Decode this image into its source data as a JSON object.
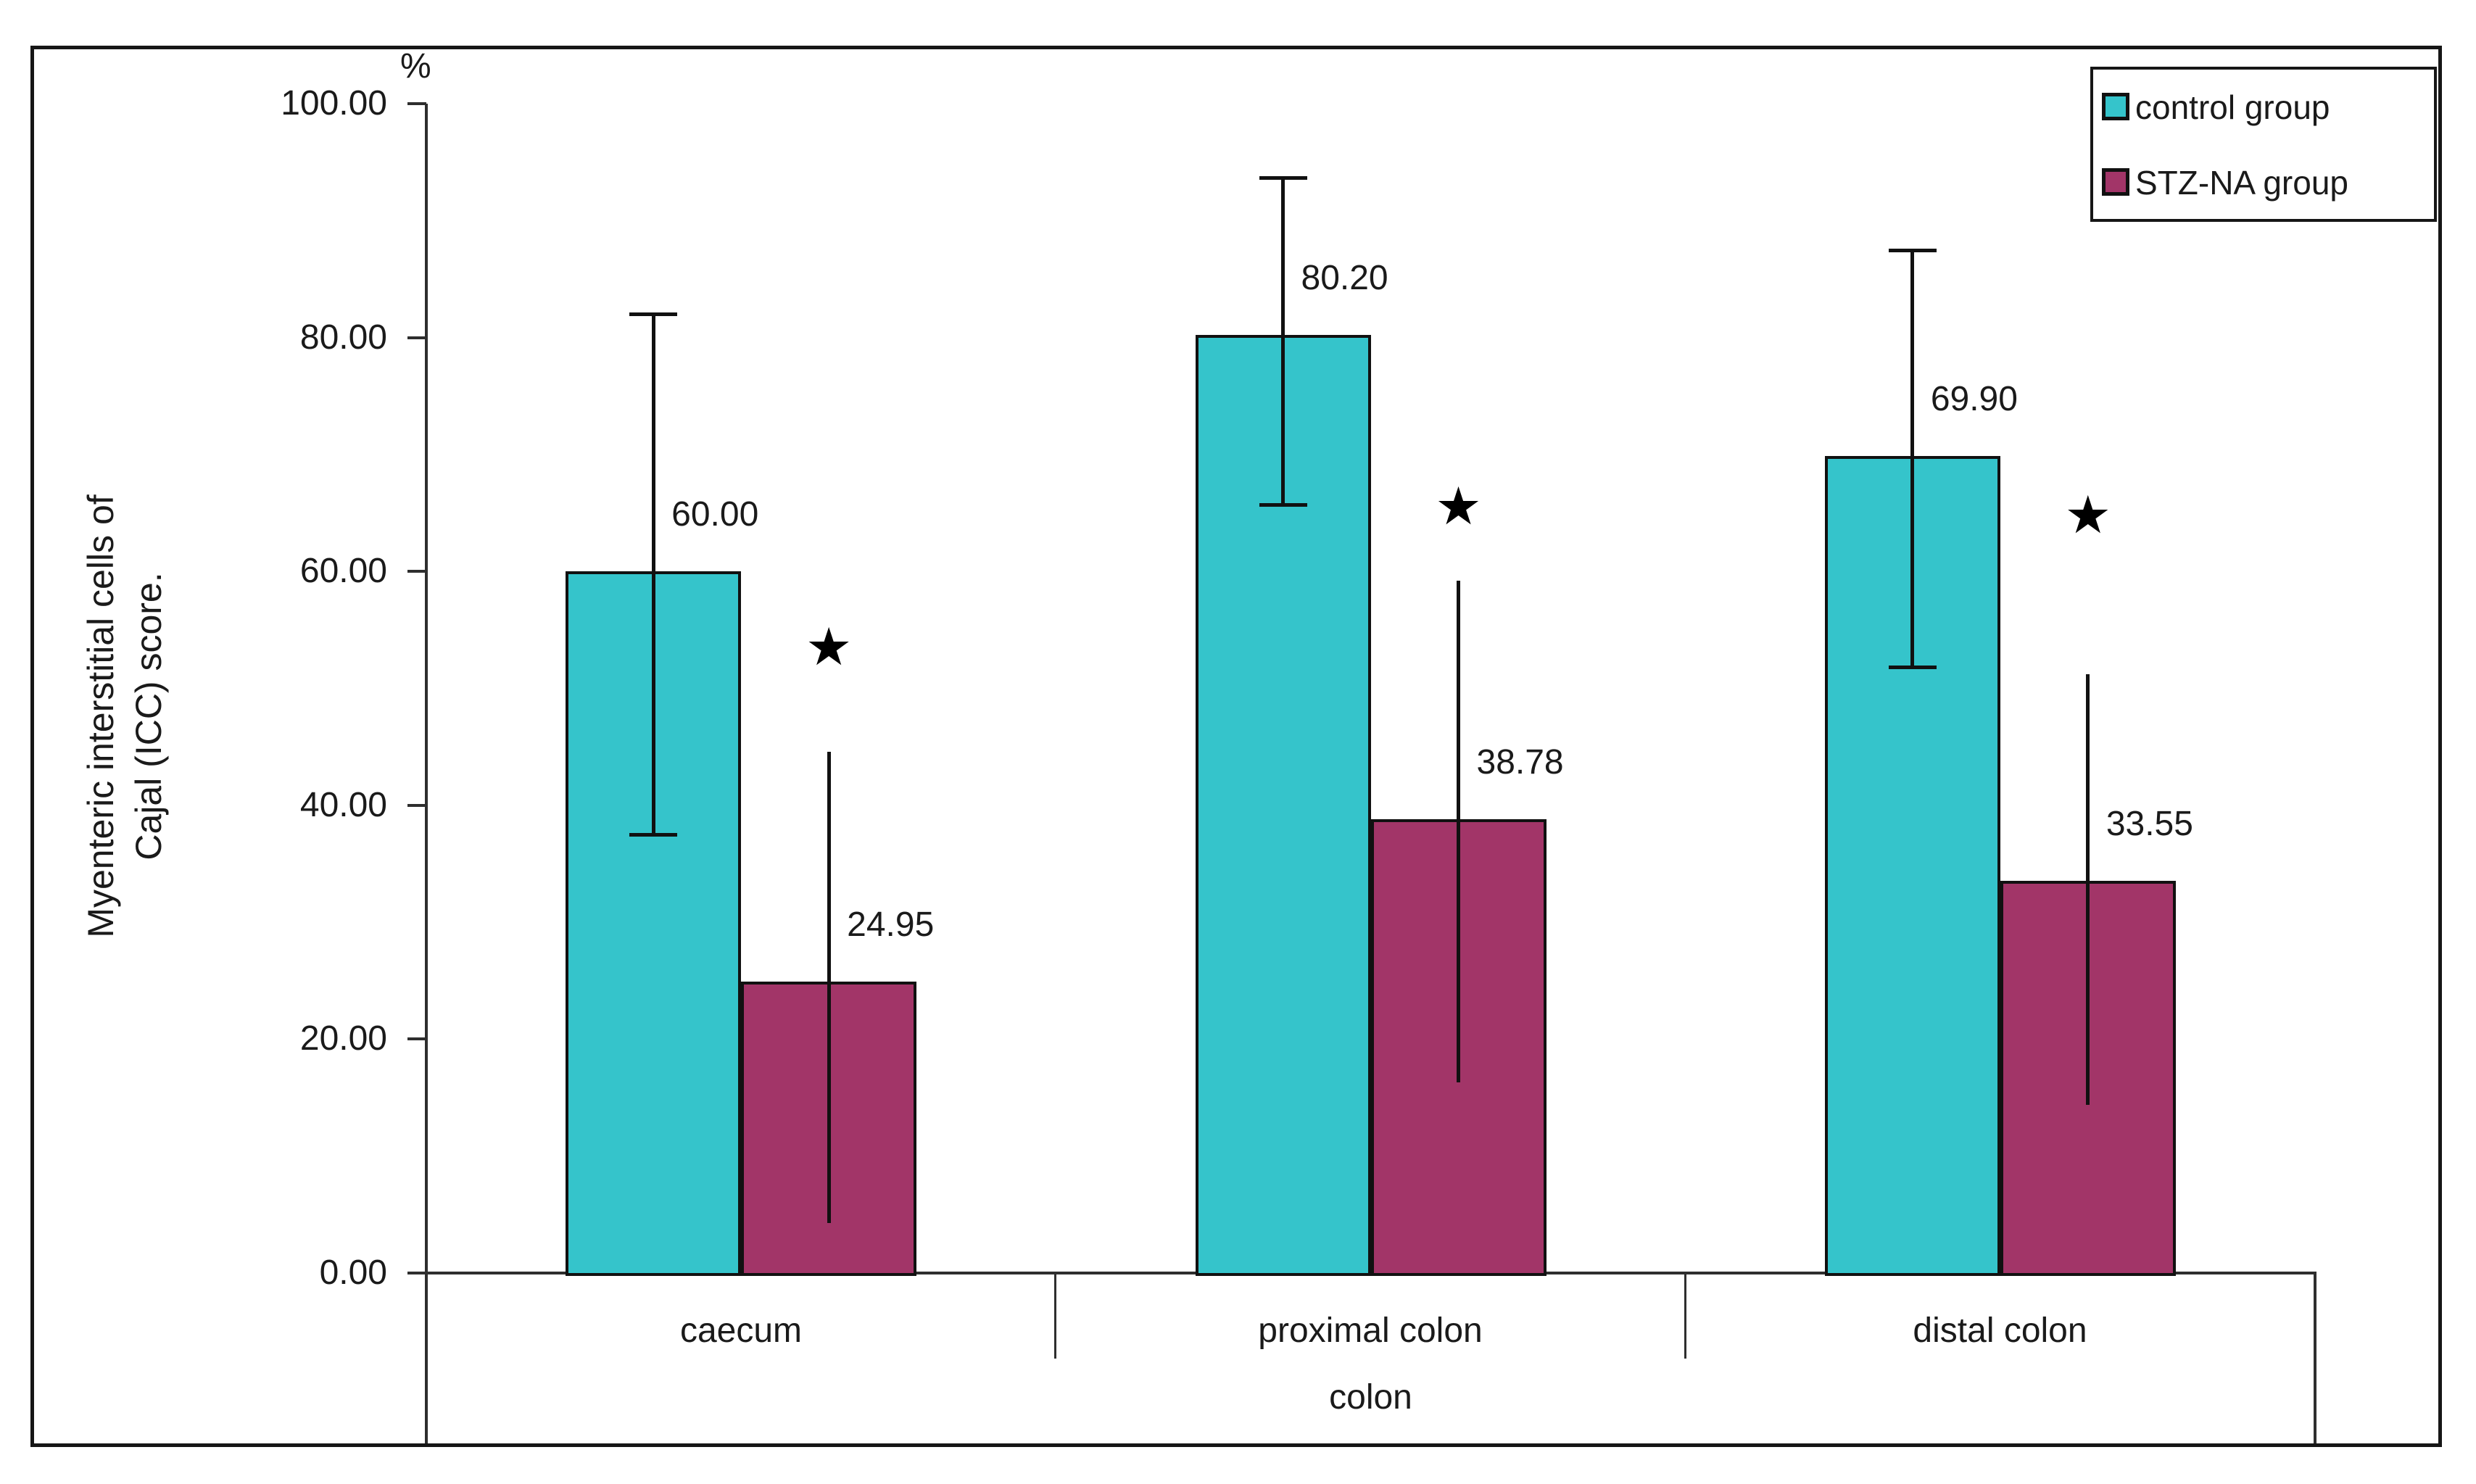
{
  "chart_data": {
    "type": "bar",
    "unit_label": "%",
    "ylabel_lines": [
      "Myenteric interstitial cells of",
      "Cajal (ICC) score."
    ],
    "xlabel": "colon",
    "categories": [
      "caecum",
      "proximal colon",
      "distal colon"
    ],
    "y_axis": {
      "min": 0,
      "max": 100,
      "step": 20,
      "decimals": 2
    },
    "series": [
      {
        "name": "control group",
        "color": "#35C4CB",
        "values": [
          60.0,
          80.2,
          69.9
        ],
        "error_low": [
          37.5,
          65.7,
          51.8
        ],
        "error_high": [
          82.0,
          93.7,
          87.5
        ],
        "error_caps": true
      },
      {
        "name": "STZ-NA group",
        "color": "#A23568",
        "values": [
          24.95,
          38.78,
          33.55
        ],
        "error_low": [
          4.3,
          16.3,
          14.4
        ],
        "error_high": [
          44.6,
          59.2,
          51.2
        ],
        "error_caps": false
      }
    ],
    "data_labels": [
      "60.00",
      "80.20",
      "69.90",
      "24.95",
      "38.78",
      "33.55"
    ],
    "significance": {
      "symbol": "★",
      "on_series": "STZ-NA group",
      "y_positions": [
        53.5,
        65.5,
        64.8
      ]
    },
    "legend_position": "top-right",
    "grid": false
  },
  "legend": {
    "items": [
      {
        "label": "control group",
        "color": "#35C4CB"
      },
      {
        "label": "STZ-NA group",
        "color": "#A23568"
      }
    ]
  },
  "colors": {
    "background": "#ffffff",
    "bar_outline": "#111111",
    "axis": "#2e2e2e",
    "frame": "#161616",
    "text": "#1a1a1a",
    "control_fill": "#35C4CB",
    "stz_fill": "#A23568"
  }
}
